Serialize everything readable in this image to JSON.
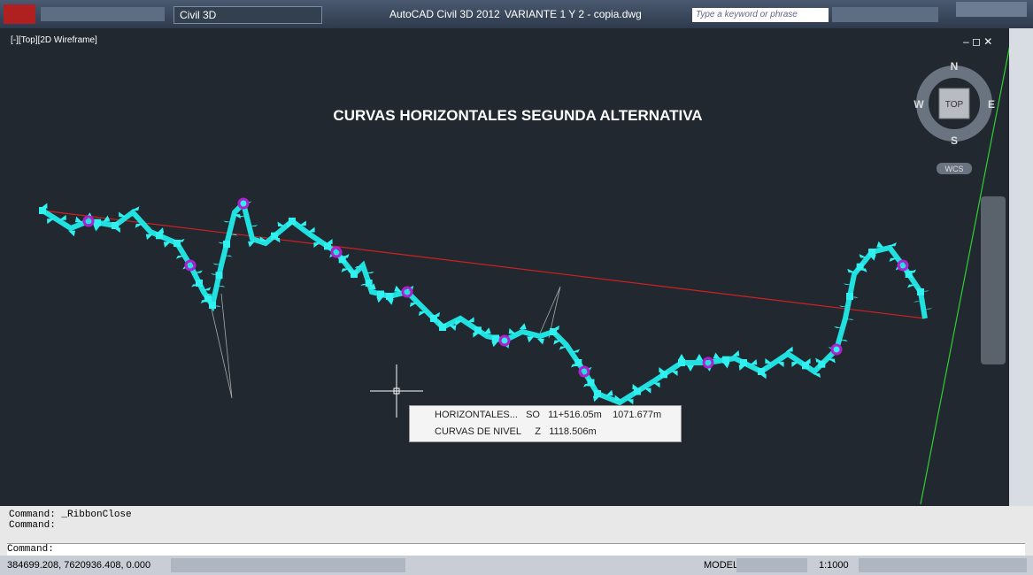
{
  "titlebar": {
    "app": "AutoCAD Civil 3D 2012",
    "file": "VARIANTE 1 Y 2 - copia.dwg",
    "workspace": "Civil 3D",
    "search": "Type a keyword or phrase"
  },
  "viewport": {
    "label": "[-][Top][2D Wireframe]",
    "drawing_title": "CURVAS HORIZONTALES SEGUNDA ALTERNATIVA",
    "viewcube": {
      "north": "N",
      "south": "S",
      "east": "E",
      "west": "W",
      "face": "TOP",
      "ucs": "WCS"
    }
  },
  "tooltip": {
    "rows": [
      [
        "HORIZONTALES...",
        "SO",
        "11+516.05m",
        "1071.677m"
      ],
      [
        "CURVAS DE NIVEL",
        "Z",
        "1118.506m"
      ]
    ]
  },
  "command": {
    "lines": [
      "Command:  _RibbonClose",
      "Command:"
    ],
    "prompt": "Command:"
  },
  "statusbar": {
    "coords": "384699.208, 7620936.408, 0.000",
    "space": "MODEL",
    "scale": "1:1000"
  }
}
